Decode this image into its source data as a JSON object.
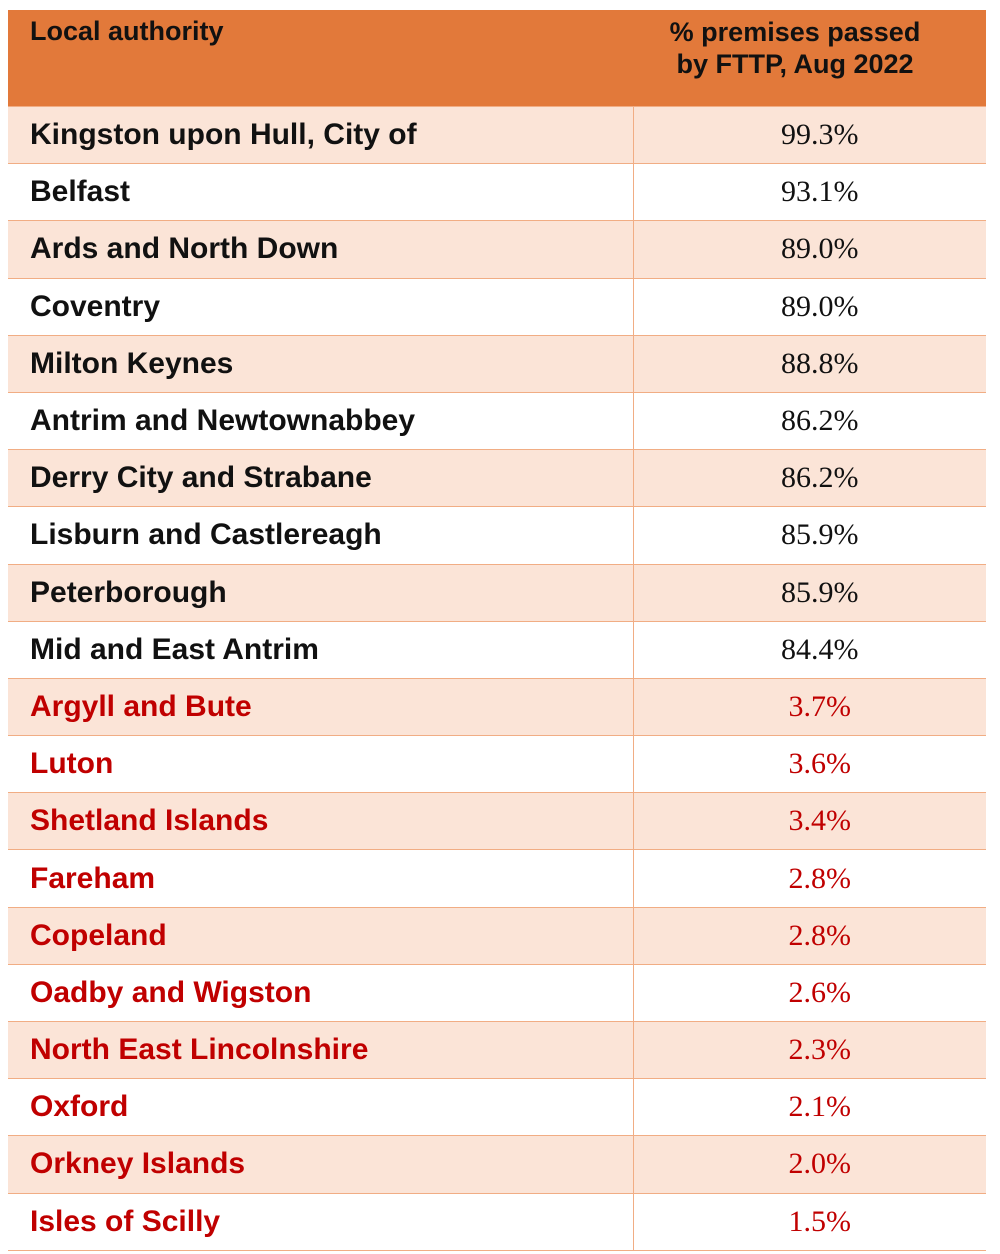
{
  "table": {
    "header": [
      "Local authority",
      "% premises passed by FTTP, Aug 2022"
    ],
    "rows": [
      [
        "Kingston upon Hull, City of",
        "99.3%"
      ],
      [
        "Belfast",
        "93.1%"
      ],
      [
        "Ards and North Down",
        "89.0%"
      ],
      [
        "Coventry",
        "89.0%"
      ],
      [
        "Milton Keynes",
        "88.8%"
      ],
      [
        "Antrim and Newtownabbey",
        "86.2%"
      ],
      [
        "Derry City and Strabane",
        "86.2%"
      ],
      [
        "Lisburn and Castlereagh",
        "85.9%"
      ],
      [
        "Peterborough",
        "85.9%"
      ],
      [
        "Mid and East Antrim",
        "84.4%"
      ],
      [
        "Argyll and Bute",
        "3.7%"
      ],
      [
        "Luton",
        "3.6%"
      ],
      [
        "Shetland Islands",
        "3.4%"
      ],
      [
        "Fareham",
        "2.8%"
      ],
      [
        "Copeland",
        "2.8%"
      ],
      [
        "Oadby and Wigston",
        "2.6%"
      ],
      [
        "North East Lincolnshire",
        "2.3%"
      ],
      [
        "Oxford",
        "2.1%"
      ],
      [
        "Orkney Islands",
        "2.0%"
      ],
      [
        "Isles of Scilly",
        "1.5%"
      ]
    ]
  }
}
